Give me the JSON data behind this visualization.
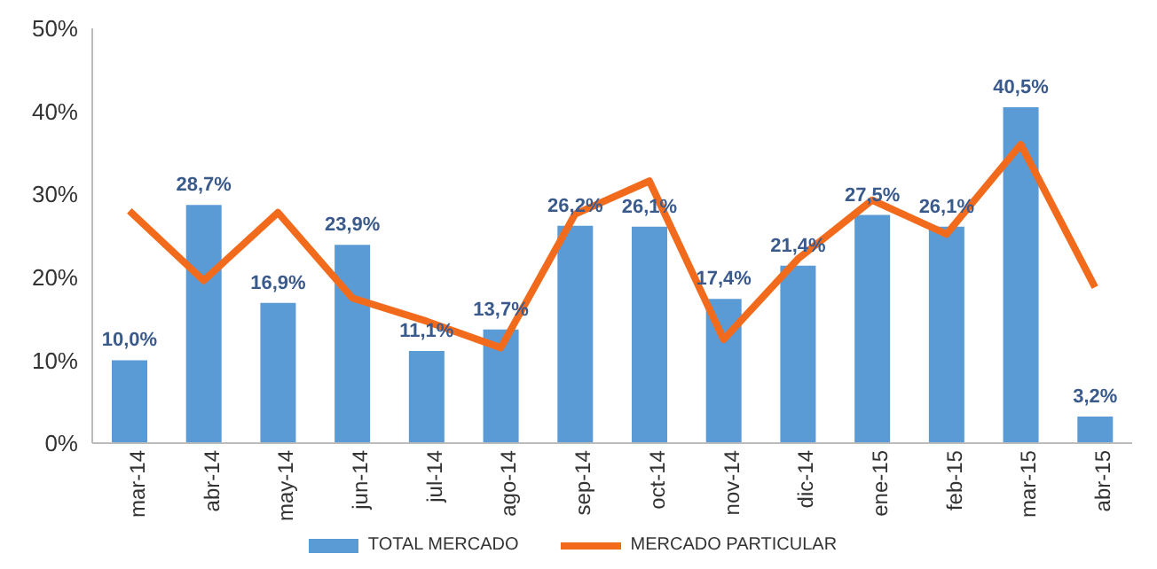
{
  "chart_data": {
    "type": "bar",
    "categories": [
      "mar-14",
      "abr-14",
      "may-14",
      "jun-14",
      "jul-14",
      "ago-14",
      "sep-14",
      "oct-14",
      "nov-14",
      "dic-14",
      "ene-15",
      "feb-15",
      "mar-15",
      "abr-15"
    ],
    "series": [
      {
        "name": "TOTAL MERCADO",
        "color": "#5b9bd5",
        "values": [
          10.0,
          28.7,
          16.9,
          23.9,
          11.1,
          13.7,
          26.2,
          26.1,
          17.4,
          21.4,
          27.5,
          26.1,
          40.5,
          3.2
        ],
        "value_labels": [
          "10,0%",
          "28,7%",
          "16,9%",
          "23,9%",
          "11,1%",
          "13,7%",
          "26,2%",
          "26,1%",
          "17,4%",
          "21,4%",
          "27,5%",
          "26,1%",
          "40,5%",
          "3,2%"
        ]
      },
      {
        "name": "MERCADO PARTICULAR",
        "type": "line",
        "color": "#f26b1d",
        "values": [
          28.0,
          19.6,
          27.8,
          17.5,
          14.7,
          11.5,
          27.6,
          31.6,
          12.5,
          22.2,
          29.3,
          25.2,
          36.0,
          18.8
        ]
      }
    ],
    "ylim": [
      0,
      50
    ],
    "yticks": [
      {
        "value": 0,
        "label": "0%"
      },
      {
        "value": 10,
        "label": "10%"
      },
      {
        "value": 20,
        "label": "20%"
      },
      {
        "value": 30,
        "label": "30%"
      },
      {
        "value": 40,
        "label": "40%"
      },
      {
        "value": 50,
        "label": "50%"
      }
    ],
    "grid": false,
    "legend": "bottom",
    "marker": "none",
    "line_style": "solid"
  }
}
